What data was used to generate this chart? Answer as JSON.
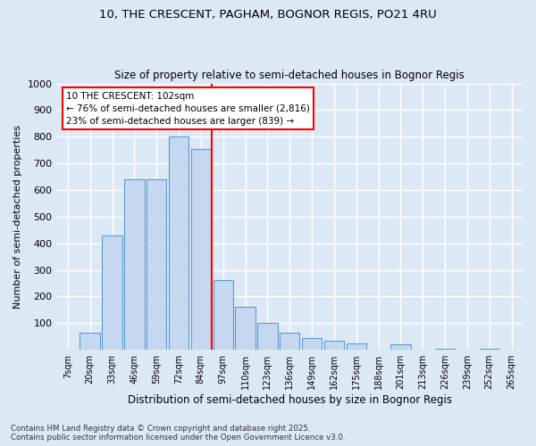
{
  "title1": "10, THE CRESCENT, PAGHAM, BOGNOR REGIS, PO21 4RU",
  "title2": "Size of property relative to semi-detached houses in Bognor Regis",
  "xlabel": "Distribution of semi-detached houses by size in Bognor Regis",
  "ylabel": "Number of semi-detached properties",
  "categories": [
    "7sqm",
    "20sqm",
    "33sqm",
    "46sqm",
    "59sqm",
    "72sqm",
    "84sqm",
    "97sqm",
    "110sqm",
    "123sqm",
    "136sqm",
    "149sqm",
    "162sqm",
    "175sqm",
    "188sqm",
    "201sqm",
    "213sqm",
    "226sqm",
    "239sqm",
    "252sqm",
    "265sqm"
  ],
  "values": [
    0,
    65,
    430,
    640,
    640,
    800,
    755,
    260,
    160,
    100,
    65,
    45,
    35,
    25,
    0,
    20,
    0,
    5,
    0,
    5,
    0
  ],
  "bar_color": "#c5d8f0",
  "bar_edge_color": "#5b9bd5",
  "background_color": "#dce9f5",
  "grid_color": "#ffffff",
  "annotation_text": "10 THE CRESCENT: 102sqm\n← 76% of semi-detached houses are smaller (2,816)\n23% of semi-detached houses are larger (839) →",
  "vline_x_index": 7,
  "vline_color": "red",
  "footnote": "Contains HM Land Registry data © Crown copyright and database right 2025.\nContains public sector information licensed under the Open Government Licence v3.0.",
  "ylim": [
    0,
    1000
  ],
  "yticks": [
    0,
    100,
    200,
    300,
    400,
    500,
    600,
    700,
    800,
    900,
    1000
  ]
}
